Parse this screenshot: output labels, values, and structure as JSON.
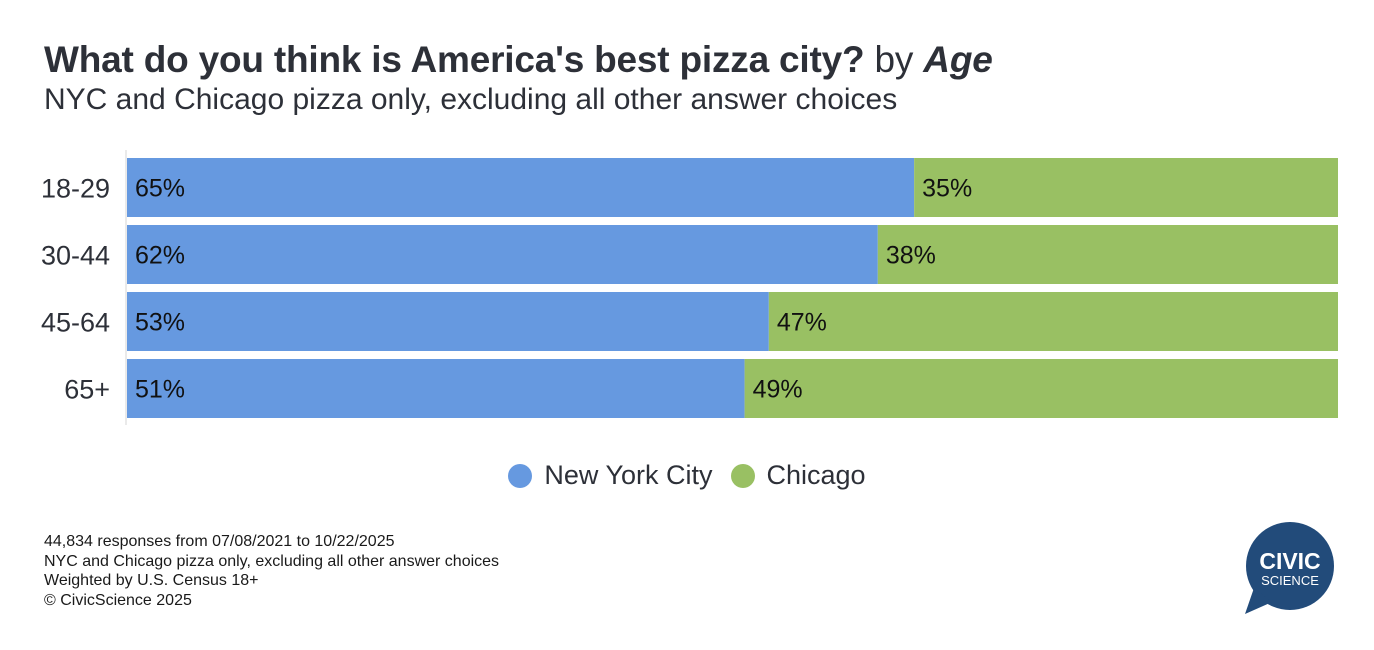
{
  "header": {
    "title_main": "What do you think is America's best pizza city?",
    "title_by": "by",
    "title_dim": "Age",
    "subtitle": "NYC and Chicago pizza only, excluding all other answer choices"
  },
  "chart_data": {
    "type": "bar",
    "orientation": "horizontal",
    "stacked": true,
    "categories": [
      "18-29",
      "30-44",
      "45-64",
      "65+"
    ],
    "series": [
      {
        "name": "New York City",
        "values": [
          65,
          62,
          53,
          51
        ],
        "color": "#6699e0"
      },
      {
        "name": "Chicago",
        "values": [
          35,
          38,
          47,
          49
        ],
        "color": "#99c063"
      }
    ],
    "value_labels": [
      [
        "65%",
        "35%"
      ],
      [
        "62%",
        "38%"
      ],
      [
        "53%",
        "47%"
      ],
      [
        "51%",
        "49%"
      ]
    ],
    "xlim": [
      0,
      100
    ],
    "grid": false,
    "legend_position": "bottom"
  },
  "legend": {
    "items": [
      {
        "label": "New York City",
        "color": "#6699e0"
      },
      {
        "label": "Chicago",
        "color": "#99c063"
      }
    ]
  },
  "footnotes": {
    "line1": "44,834 responses from 07/08/2021 to 10/22/2025",
    "line2": "NYC and Chicago pizza only, excluding all other answer choices",
    "line3": "Weighted by U.S. Census 18+",
    "line4": "© CivicScience 2025"
  },
  "logo": {
    "line1": "CIVIC",
    "line2": "SCIENCE",
    "color": "#224b7a"
  }
}
